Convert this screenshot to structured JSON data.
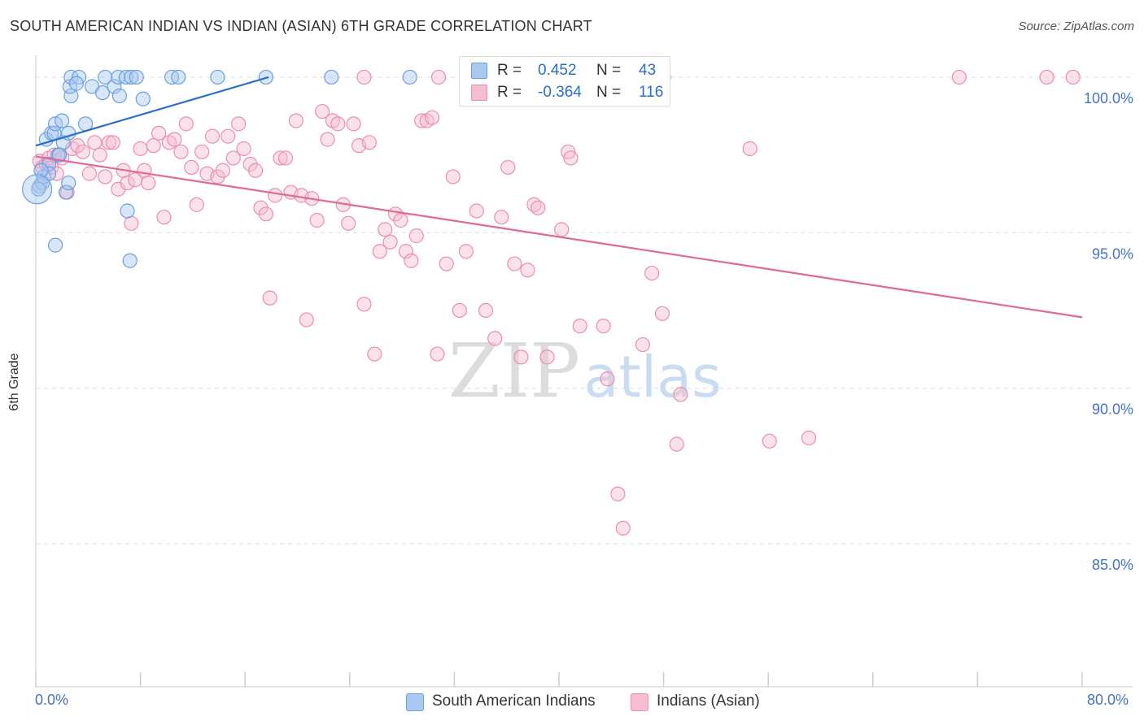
{
  "title": "SOUTH AMERICAN INDIAN VS INDIAN (ASIAN) 6TH GRADE CORRELATION CHART",
  "source": "Source: ZipAtlas.com",
  "watermark": {
    "zip": "ZIP",
    "atlas": "atlas"
  },
  "colors": {
    "blue_fill": "#a9c8ef",
    "blue_stroke": "#6a9fe0",
    "blue_line": "#2a6fce",
    "pink_fill": "#f6bcd0",
    "pink_stroke": "#eb8db0",
    "pink_line": "#e0689a",
    "axis_text": "#4472c4",
    "grid": "#dddddd"
  },
  "legend": {
    "rows": [
      {
        "r_label": "R =",
        "r_value": "0.452",
        "n_label": "N =",
        "n_value": "43"
      },
      {
        "r_label": "R =",
        "r_value": "-0.364",
        "n_label": "N =",
        "n_value": "116"
      }
    ]
  },
  "bottom_legend": {
    "blue_label": "South American Indians",
    "pink_label": "Indians (Asian)"
  },
  "chart_data": {
    "type": "scatter",
    "title": "SOUTH AMERICAN INDIAN VS INDIAN (ASIAN) 6TH GRADE CORRELATION CHART",
    "xlabel": "",
    "ylabel": "6th Grade",
    "xlim": [
      0,
      80
    ],
    "ylim": [
      80.4,
      100.6
    ],
    "x_tick_labels": [
      {
        "value": 0,
        "label": "0.0%"
      },
      {
        "value": 80,
        "label": "80.0%"
      }
    ],
    "y_tick_labels": [
      {
        "value": 100,
        "label": "100.0%"
      },
      {
        "value": 95,
        "label": "95.0%"
      },
      {
        "value": 90,
        "label": "90.0%"
      },
      {
        "value": 85,
        "label": "85.0%"
      }
    ],
    "series": [
      {
        "name": "South American Indians",
        "color": "#a9c8ef",
        "r": 0.452,
        "n": 43,
        "trend": {
          "x": [
            0,
            17.8
          ],
          "y": [
            97.8,
            100.0
          ]
        },
        "points": [
          [
            0.3,
            96.5
          ],
          [
            0.5,
            96.6
          ],
          [
            0.6,
            96.8
          ],
          [
            0.8,
            98.0
          ],
          [
            1.0,
            97.2
          ],
          [
            1.2,
            98.2
          ],
          [
            1.4,
            98.2
          ],
          [
            1.5,
            98.5
          ],
          [
            1.7,
            97.5
          ],
          [
            2.0,
            98.6
          ],
          [
            2.1,
            97.9
          ],
          [
            2.3,
            96.3
          ],
          [
            2.5,
            96.6
          ],
          [
            1.5,
            94.6
          ],
          [
            2.5,
            98.2
          ],
          [
            2.7,
            99.4
          ],
          [
            2.6,
            99.7
          ],
          [
            2.7,
            100.0
          ],
          [
            3.3,
            100.0
          ],
          [
            3.1,
            99.8
          ],
          [
            3.8,
            98.5
          ],
          [
            4.3,
            99.7
          ],
          [
            5.1,
            99.5
          ],
          [
            5.3,
            100.0
          ],
          [
            6.0,
            99.7
          ],
          [
            6.4,
            99.4
          ],
          [
            6.3,
            100.0
          ],
          [
            6.9,
            100.0
          ],
          [
            7.0,
            95.7
          ],
          [
            7.2,
            94.1
          ],
          [
            7.3,
            100.0
          ],
          [
            7.7,
            100.0
          ],
          [
            8.2,
            99.3
          ],
          [
            10.4,
            100.0
          ],
          [
            10.9,
            100.0
          ],
          [
            13.9,
            100.0
          ],
          [
            17.6,
            100.0
          ],
          [
            22.6,
            100.0
          ],
          [
            28.6,
            100.0
          ],
          [
            0.2,
            96.4
          ],
          [
            1.0,
            96.9
          ],
          [
            1.8,
            97.5
          ],
          [
            0.4,
            97.0
          ]
        ]
      },
      {
        "name": "Indians (Asian)",
        "color": "#f6bcd0",
        "r": -0.364,
        "n": 116,
        "trend": {
          "x": [
            0,
            80
          ],
          "y": [
            97.45,
            92.28
          ]
        },
        "points": [
          [
            0.3,
            97.3
          ],
          [
            0.5,
            97.1
          ],
          [
            0.8,
            97.2
          ],
          [
            1.0,
            97.4
          ],
          [
            1.2,
            97.1
          ],
          [
            1.4,
            97.5
          ],
          [
            1.6,
            96.9
          ],
          [
            2.0,
            97.4
          ],
          [
            2.4,
            96.3
          ],
          [
            2.8,
            97.7
          ],
          [
            3.2,
            97.8
          ],
          [
            3.6,
            97.6
          ],
          [
            4.1,
            96.9
          ],
          [
            4.5,
            97.9
          ],
          [
            4.9,
            97.5
          ],
          [
            5.3,
            96.8
          ],
          [
            5.6,
            97.9
          ],
          [
            5.9,
            97.9
          ],
          [
            6.3,
            96.4
          ],
          [
            6.7,
            97.0
          ],
          [
            7.0,
            96.6
          ],
          [
            7.3,
            95.3
          ],
          [
            7.6,
            96.7
          ],
          [
            8.0,
            97.7
          ],
          [
            8.3,
            97.0
          ],
          [
            8.6,
            96.6
          ],
          [
            9.0,
            97.8
          ],
          [
            9.4,
            98.2
          ],
          [
            9.8,
            95.5
          ],
          [
            10.2,
            97.9
          ],
          [
            10.6,
            98.0
          ],
          [
            11.1,
            97.6
          ],
          [
            11.5,
            98.5
          ],
          [
            11.9,
            97.1
          ],
          [
            12.3,
            95.9
          ],
          [
            12.7,
            97.6
          ],
          [
            13.1,
            96.9
          ],
          [
            13.5,
            98.1
          ],
          [
            13.9,
            96.8
          ],
          [
            14.3,
            97.0
          ],
          [
            14.7,
            98.1
          ],
          [
            15.1,
            97.4
          ],
          [
            15.5,
            98.5
          ],
          [
            15.9,
            97.7
          ],
          [
            16.4,
            97.2
          ],
          [
            16.8,
            97.0
          ],
          [
            17.2,
            95.8
          ],
          [
            17.6,
            95.6
          ],
          [
            17.9,
            92.9
          ],
          [
            18.3,
            96.2
          ],
          [
            18.7,
            97.4
          ],
          [
            19.1,
            97.4
          ],
          [
            19.5,
            96.3
          ],
          [
            19.9,
            98.6
          ],
          [
            20.3,
            96.2
          ],
          [
            20.7,
            92.2
          ],
          [
            21.1,
            96.1
          ],
          [
            21.5,
            95.4
          ],
          [
            21.9,
            98.9
          ],
          [
            22.3,
            98.0
          ],
          [
            22.7,
            98.6
          ],
          [
            23.1,
            98.5
          ],
          [
            23.5,
            95.9
          ],
          [
            23.9,
            95.3
          ],
          [
            24.3,
            98.5
          ],
          [
            24.7,
            97.8
          ],
          [
            25.1,
            92.7
          ],
          [
            25.5,
            97.9
          ],
          [
            25.9,
            91.1
          ],
          [
            26.3,
            94.4
          ],
          [
            26.7,
            95.1
          ],
          [
            27.1,
            94.7
          ],
          [
            27.5,
            95.6
          ],
          [
            27.9,
            95.4
          ],
          [
            28.3,
            94.4
          ],
          [
            28.7,
            94.1
          ],
          [
            29.1,
            94.9
          ],
          [
            29.5,
            98.6
          ],
          [
            29.9,
            98.6
          ],
          [
            30.3,
            98.7
          ],
          [
            30.7,
            91.1
          ],
          [
            31.4,
            94.0
          ],
          [
            31.9,
            96.8
          ],
          [
            32.4,
            92.5
          ],
          [
            32.9,
            94.4
          ],
          [
            33.7,
            95.7
          ],
          [
            34.4,
            92.5
          ],
          [
            35.1,
            91.6
          ],
          [
            35.6,
            95.5
          ],
          [
            36.1,
            97.1
          ],
          [
            36.6,
            94.0
          ],
          [
            37.1,
            91.0
          ],
          [
            37.6,
            93.8
          ],
          [
            38.1,
            95.9
          ],
          [
            38.4,
            95.8
          ],
          [
            39.1,
            91.0
          ],
          [
            40.2,
            95.1
          ],
          [
            40.7,
            97.6
          ],
          [
            40.9,
            97.4
          ],
          [
            41.6,
            92.0
          ],
          [
            43.4,
            92.0
          ],
          [
            43.7,
            90.3
          ],
          [
            44.5,
            86.6
          ],
          [
            44.9,
            85.5
          ],
          [
            46.4,
            91.4
          ],
          [
            47.1,
            93.7
          ],
          [
            47.9,
            92.4
          ],
          [
            49.0,
            88.2
          ],
          [
            49.3,
            89.8
          ],
          [
            54.6,
            97.7
          ],
          [
            56.1,
            88.3
          ],
          [
            59.1,
            88.4
          ],
          [
            70.6,
            100.0
          ],
          [
            77.3,
            100.0
          ],
          [
            79.3,
            100.0
          ],
          [
            25.1,
            100.0
          ],
          [
            30.8,
            100.0
          ],
          [
            48.0,
            100.0
          ]
        ]
      }
    ]
  }
}
